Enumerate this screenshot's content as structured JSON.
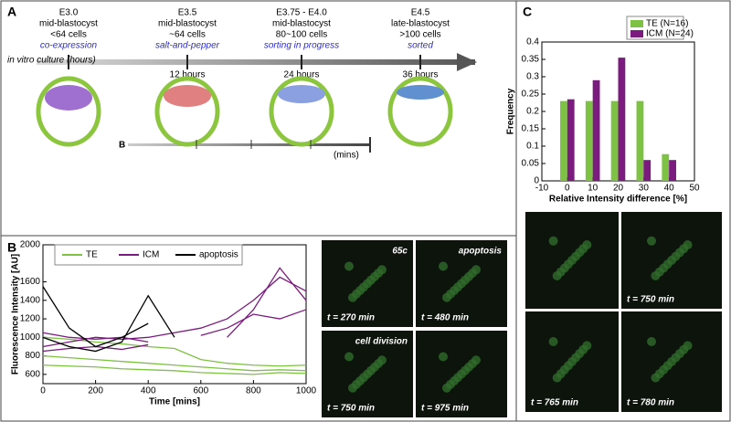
{
  "panels": {
    "A": {
      "label": "A",
      "axis_label": "in vitro culture (hours)",
      "stages": [
        {
          "stage": "E3.0",
          "kind": "mid-blastocyst",
          "cells": "<64 cells",
          "pattern": "co-expression"
        },
        {
          "stage": "E3.5",
          "kind": "mid-blastocyst",
          "cells": "~64 cells",
          "pattern": "salt-and-pepper",
          "hours": "12 hours"
        },
        {
          "stage": "E3.75 - E4.0",
          "kind": "mid-blastocyst",
          "cells": "80~100 cells",
          "pattern": "sorting in progress",
          "hours": "24 hours"
        },
        {
          "stage": "E4.5",
          "kind": "late-blastocyst",
          "cells": ">100 cells",
          "pattern": "sorted",
          "hours": "36 hours"
        }
      ],
      "sub_label": "B",
      "sub_unit": "(mins)"
    },
    "B": {
      "label": "B",
      "images": [
        {
          "time": "t = 270 min",
          "note": "65c"
        },
        {
          "time": "t = 480 min",
          "note": "apoptosis"
        },
        {
          "time": "t = 750 min",
          "note": "cell division"
        },
        {
          "time": "t = 975 min"
        }
      ]
    },
    "C": {
      "label": "C",
      "images": [
        {
          "time": null
        },
        {
          "time": "t = 750 min"
        },
        {
          "time": "t = 765 min"
        },
        {
          "time": "t = 780 min"
        }
      ]
    }
  },
  "chart_data": [
    {
      "type": "line",
      "xlabel": "Time [mins]",
      "ylabel": "Fluorescence Intensity [AU]",
      "x": [
        0,
        100,
        200,
        300,
        400,
        500,
        600,
        700,
        800,
        900,
        1000
      ],
      "xlim": [
        0,
        1000
      ],
      "xticks": [
        0,
        200,
        400,
        600,
        800,
        1000
      ],
      "ylim": [
        500,
        2000
      ],
      "yticks": [
        600,
        800,
        1000,
        1200,
        1400,
        1600,
        2000
      ],
      "groups": [
        {
          "name": "TE",
          "color": "#7dc242",
          "lines": [
            [
              800,
              780,
              760,
              740,
              720,
              700,
              680,
              660,
              640,
              650,
              640
            ],
            [
              700,
              690,
              680,
              660,
              650,
              640,
              620,
              610,
              600,
              620,
              610
            ],
            [
              1000,
              980,
              950,
              930,
              900,
              880,
              760,
              720,
              700,
              690,
              700
            ]
          ]
        },
        {
          "name": "ICM",
          "color": "#7b1a7f",
          "lines": [
            [
              900,
              950,
              1000,
              980,
              1000,
              1050,
              1100,
              1200,
              1400,
              1650,
              1500
            ],
            [
              850,
              880,
              900,
              870,
              920,
              null,
              null,
              1000,
              1300,
              1750,
              1400
            ],
            [
              1050,
              1000,
              980,
              1000,
              950,
              null,
              1020,
              1100,
              1250,
              1200,
              1300
            ]
          ]
        },
        {
          "name": "apoptosis",
          "color": "#000000",
          "lines": [
            [
              1550,
              1100,
              900,
              1000,
              1150,
              null,
              null,
              null,
              null,
              null,
              null
            ],
            [
              1000,
              900,
              850,
              950,
              1450,
              1000,
              null,
              null,
              null,
              null,
              null
            ]
          ]
        }
      ]
    },
    {
      "type": "bar",
      "xlabel": "Relative Intensity difference [%]",
      "ylabel": "Frequency",
      "x": [
        0,
        10,
        20,
        30,
        40
      ],
      "xlim": [
        -10,
        50
      ],
      "xticks": [
        -10,
        0,
        10,
        20,
        30,
        40,
        50
      ],
      "ylim": [
        0,
        0.4
      ],
      "yticks": [
        0,
        0.05,
        0.1,
        0.15,
        0.2,
        0.25,
        0.3,
        0.35,
        0.4
      ],
      "series": [
        {
          "name": "TE (N=16)",
          "color": "#7dc242",
          "values": [
            0.23,
            0.23,
            0.23,
            0.23,
            0.077
          ]
        },
        {
          "name": "ICM (N=24)",
          "color": "#7b1a7f",
          "values": [
            0.235,
            0.29,
            0.355,
            0.06,
            0.06
          ]
        }
      ]
    }
  ]
}
